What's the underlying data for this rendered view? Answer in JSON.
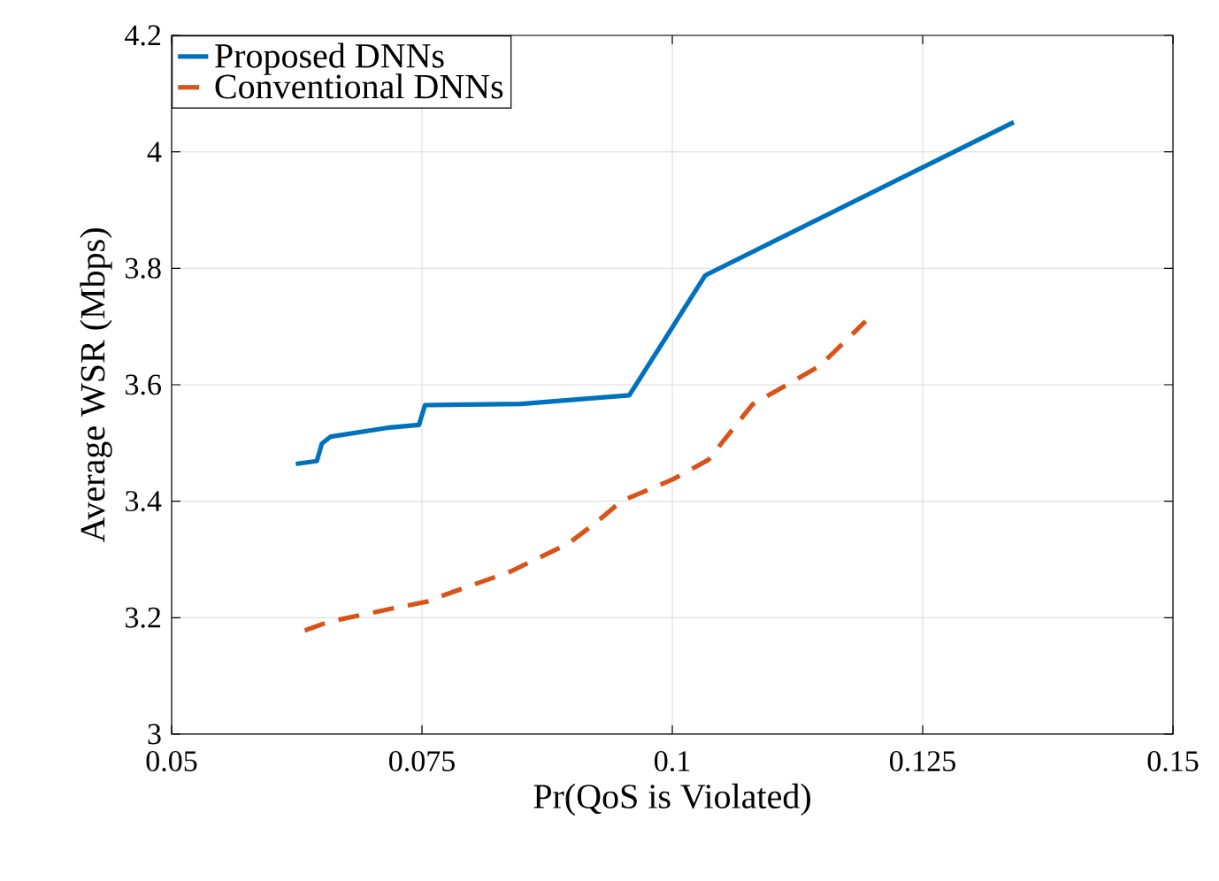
{
  "chart_data": {
    "type": "line",
    "xlabel": "Pr(QoS is Violated)",
    "ylabel": "Average WSR (Mbps)",
    "xlim": [
      0.05,
      0.15
    ],
    "xticks": [
      0.05,
      0.075,
      0.1,
      0.125,
      0.15
    ],
    "ylim": [
      3,
      4.2
    ],
    "yticks": [
      3,
      3.2,
      3.4,
      3.6,
      3.8,
      4,
      4.2
    ],
    "grid": true,
    "legend": "top left",
    "marker": "none",
    "series": [
      {
        "name": "Proposed DNNs",
        "color": "#0072bd",
        "line_style": "solid",
        "x": [
          0.0624,
          0.0645,
          0.065,
          0.0659,
          0.0715,
          0.0747,
          0.0753,
          0.0849,
          0.0957,
          0.1033,
          0.1341
        ],
        "values": [
          3.464,
          3.469,
          3.499,
          3.511,
          3.526,
          3.531,
          3.565,
          3.567,
          3.582,
          3.788,
          4.051
        ]
      },
      {
        "name": "Conventional DNNs",
        "color": "#d95319",
        "line_style": "dashed",
        "x": [
          0.0633,
          0.0657,
          0.0721,
          0.0756,
          0.0774,
          0.0838,
          0.0896,
          0.0925,
          0.0949,
          0.1001,
          0.1036,
          0.108,
          0.1147,
          0.1193
        ],
        "values": [
          3.178,
          3.193,
          3.216,
          3.228,
          3.24,
          3.279,
          3.327,
          3.365,
          3.4,
          3.438,
          3.471,
          3.566,
          3.632,
          3.709
        ]
      }
    ]
  }
}
